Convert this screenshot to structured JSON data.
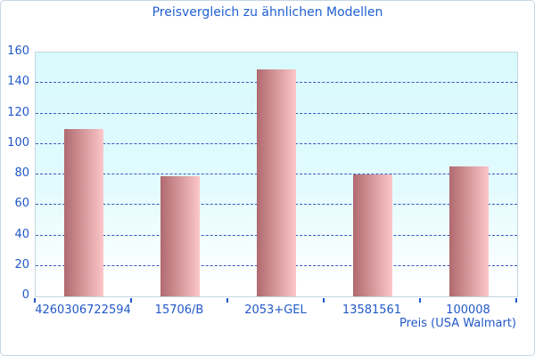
{
  "chart_data": {
    "type": "bar",
    "title": "Preisvergleich zu ähnlichen Modellen",
    "categories": [
      "4260306722594",
      "15706/B",
      "2053+GEL",
      "13581561",
      "100008"
    ],
    "values": [
      110,
      79,
      149,
      80,
      85
    ],
    "xlabel": "Preis (USA Walmart)",
    "ylabel": "",
    "ylim": [
      0,
      160
    ],
    "ytick_step": 20,
    "yticks": [
      0,
      20,
      40,
      60,
      80,
      100,
      120,
      140,
      160
    ],
    "grid": "horizontal-dashed",
    "legend": "none"
  },
  "colors": {
    "background": "#ffffff",
    "outer_border": "#c9d6e2",
    "title_text": "#2060d2",
    "axis_text": "#2158c8",
    "gridline": "#3558c2",
    "plot_border": "#c5d6de",
    "plot_bg_top": "#d8fafd",
    "plot_bg_mid": "#e2fbfe",
    "plot_bg_bottom": "#ffffff",
    "bar_gradient_left": "#b06a6f",
    "bar_gradient_right": "#fcc6c8"
  }
}
